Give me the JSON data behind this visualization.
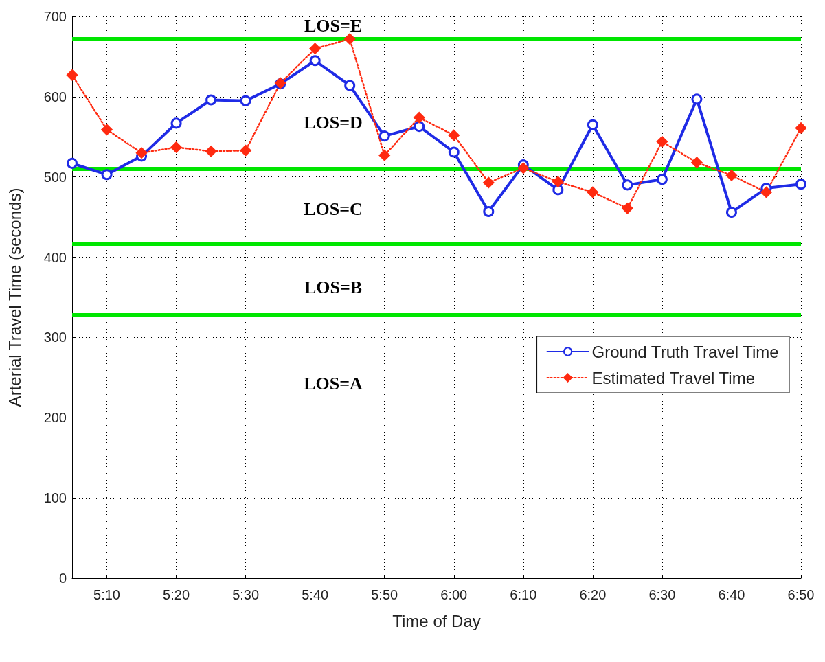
{
  "chart_data": {
    "type": "line",
    "xlabel": "Time of Day",
    "ylabel": "Arterial Travel Time (seconds)",
    "categories": [
      null,
      "5:10",
      null,
      "5:20",
      null,
      "5:30",
      null,
      "5:40",
      null,
      "5:50",
      null,
      "6:00",
      null,
      "6:10",
      null,
      "6:20",
      null,
      "6:30",
      null,
      "6:40",
      null,
      "6:50"
    ],
    "series": [
      {
        "name": "Ground Truth Travel Time",
        "color": "#1f2be6",
        "marker": "circle",
        "line_style": "solid",
        "values": [
          517,
          503,
          526,
          567,
          596,
          595,
          616,
          645,
          614,
          551,
          563,
          531,
          457,
          515,
          484,
          565,
          490,
          497,
          597,
          456,
          486,
          491
        ]
      },
      {
        "name": "Estimated Travel Time",
        "color": "#ff2a10",
        "marker": "diamond",
        "line_style": "dotted",
        "values": [
          627,
          559,
          530,
          537,
          532,
          533,
          617,
          660,
          672,
          527,
          574,
          552,
          493,
          511,
          494,
          481,
          461,
          544,
          518,
          502,
          481,
          561
        ]
      }
    ],
    "ylim": [
      0,
      700
    ],
    "yticks": [
      0,
      100,
      200,
      300,
      400,
      500,
      600,
      700
    ],
    "grid": true,
    "legend": "right",
    "ref_lines": [
      {
        "axis": "y",
        "value": 672,
        "color": "#00e600"
      },
      {
        "axis": "y",
        "value": 510,
        "color": "#00e600"
      },
      {
        "axis": "y",
        "value": 417,
        "color": "#00e600"
      },
      {
        "axis": "y",
        "value": 328,
        "color": "#00e600"
      }
    ],
    "annotations": [
      "LOS=E",
      "LOS=D",
      "LOS=C",
      "LOS=B",
      "LOS=A"
    ]
  }
}
